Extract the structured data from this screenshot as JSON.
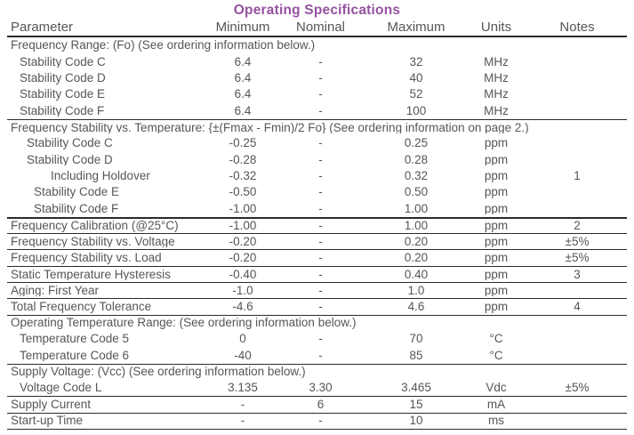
{
  "title": "Operating Specifications",
  "theme": {
    "title_color": "#9452a0",
    "text_color": "#55565a",
    "line_color": "#2b2b2b"
  },
  "table": {
    "columns": [
      "Parameter",
      "Minimum",
      "Nominal",
      "Maximum",
      "Units",
      "Notes"
    ],
    "rows": [
      {
        "type": "section",
        "indent": 0,
        "rule": "none",
        "label": "Frequency Range: (Fo) (See ordering information below.)"
      },
      {
        "type": "data",
        "indent": 1,
        "rule": "none",
        "label": "Stability Code C",
        "min": "6.4",
        "nom": "-",
        "max": "32",
        "units": "MHz",
        "notes": ""
      },
      {
        "type": "data",
        "indent": 1,
        "rule": "none",
        "label": "Stability Code D",
        "min": "6.4",
        "nom": "-",
        "max": "40",
        "units": "MHz",
        "notes": ""
      },
      {
        "type": "data",
        "indent": 1,
        "rule": "none",
        "label": "Stability Code E",
        "min": "6.4",
        "nom": "-",
        "max": "52",
        "units": "MHz",
        "notes": ""
      },
      {
        "type": "data",
        "indent": 1,
        "rule": "none",
        "label": "Stability Code F",
        "min": "6.4",
        "nom": "-",
        "max": "100",
        "units": "MHz",
        "notes": ""
      },
      {
        "type": "section",
        "indent": 0,
        "rule": "thin",
        "label": "Frequency Stability vs. Temperature: {±(Fmax - Fmin)/2 Fo} (See ordering information on page 2.)"
      },
      {
        "type": "data",
        "indent": 2,
        "rule": "none",
        "label": "Stability Code C",
        "min": "-0.25",
        "nom": "-",
        "max": "0.25",
        "units": "ppm",
        "notes": ""
      },
      {
        "type": "data",
        "indent": 2,
        "rule": "none",
        "label": "Stability Code D",
        "min": "-0.28",
        "nom": "-",
        "max": "0.28",
        "units": "ppm",
        "notes": ""
      },
      {
        "type": "data",
        "indent": 4,
        "rule": "none",
        "label": "Including Holdover",
        "min": "-0.32",
        "nom": "-",
        "max": "0.32",
        "units": "ppm",
        "notes": "1"
      },
      {
        "type": "data",
        "indent": 3,
        "rule": "none",
        "label": "Stability Code E",
        "min": "-0.50",
        "nom": "-",
        "max": "0.50",
        "units": "ppm",
        "notes": ""
      },
      {
        "type": "data",
        "indent": 3,
        "rule": "none",
        "label": "Stability Code F",
        "min": "-1.00",
        "nom": "-",
        "max": "1.00",
        "units": "ppm",
        "notes": ""
      },
      {
        "type": "data",
        "indent": 0,
        "rule": "thick",
        "label": "Frequency Calibration (@25°C)",
        "min": "-1.00",
        "nom": "-",
        "max": "1.00",
        "units": "ppm",
        "notes": "2"
      },
      {
        "type": "data",
        "indent": 0,
        "rule": "thin",
        "label": "Frequency Stability vs. Voltage",
        "min": "-0.20",
        "nom": "-",
        "max": "0.20",
        "units": "ppm",
        "notes": "±5%"
      },
      {
        "type": "data",
        "indent": 0,
        "rule": "thin",
        "label": "Frequency Stability vs. Load",
        "min": "-0.20",
        "nom": "-",
        "max": "0.20",
        "units": "ppm",
        "notes": "±5%"
      },
      {
        "type": "data",
        "indent": 0,
        "rule": "thin",
        "label": "Static Temperature Hysteresis",
        "min": "-0.40",
        "nom": "-",
        "max": "0.40",
        "units": "ppm",
        "notes": "3"
      },
      {
        "type": "data",
        "indent": 0,
        "rule": "thin",
        "label": "Aging: First Year",
        "min": "-1.0",
        "nom": "-",
        "max": "1.0",
        "units": "ppm",
        "notes": ""
      },
      {
        "type": "data",
        "indent": 0,
        "rule": "thin",
        "label": "Total Frequency Tolerance",
        "min": "-4.6",
        "nom": "-",
        "max": "4.6",
        "units": "ppm",
        "notes": "4"
      },
      {
        "type": "section",
        "indent": 0,
        "rule": "thin",
        "label": "Operating Temperature Range: (See ordering information below.)"
      },
      {
        "type": "data",
        "indent": 1,
        "rule": "none",
        "label": "Temperature Code 5",
        "min": "0",
        "nom": "-",
        "max": "70",
        "units": "°C",
        "notes": ""
      },
      {
        "type": "data",
        "indent": 1,
        "rule": "none",
        "label": "Temperature Code 6",
        "min": "-40",
        "nom": "-",
        "max": "85",
        "units": "°C",
        "notes": ""
      },
      {
        "type": "section",
        "indent": 0,
        "rule": "thin",
        "label": "Supply Voltage: (Vcc) (See ordering information below.)"
      },
      {
        "type": "data",
        "indent": 1,
        "rule": "none",
        "label": "Voltage Code L",
        "min": "3.135",
        "nom": "3.30",
        "max": "3.465",
        "units": "Vdc",
        "notes": "±5%"
      },
      {
        "type": "data",
        "indent": 0,
        "rule": "thin",
        "label": "Supply Current",
        "min": "-",
        "nom": "6",
        "max": "15",
        "units": "mA",
        "notes": ""
      },
      {
        "type": "data",
        "indent": 0,
        "rule": "thin",
        "label": "Start-up Time",
        "min": "-",
        "nom": "-",
        "max": "10",
        "units": "ms",
        "notes": ""
      }
    ]
  }
}
